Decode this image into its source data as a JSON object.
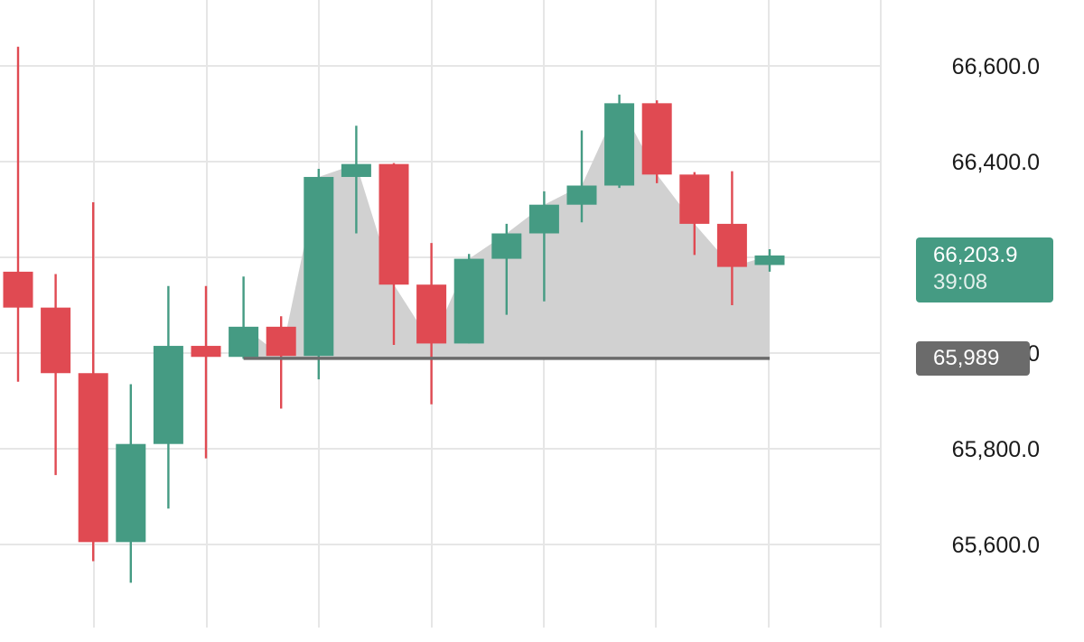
{
  "chart_data": {
    "type": "candlestick",
    "title": "",
    "ylim": [
      65440,
      66730
    ],
    "y_ticks": [
      66600,
      66400,
      66200,
      66000,
      65800,
      65600
    ],
    "y_tick_labels": [
      "66,600.0",
      "66,400.0",
      "66,200.0",
      "66,000.0",
      "65,800.0",
      "65,600.0"
    ],
    "grid": true,
    "candles": [
      {
        "open": 66170,
        "high": 66640,
        "low": 65940,
        "close": 66095
      },
      {
        "open": 66095,
        "high": 66165,
        "low": 65745,
        "close": 65958
      },
      {
        "open": 65958,
        "high": 66315,
        "low": 65565,
        "close": 65605
      },
      {
        "open": 65605,
        "high": 65935,
        "low": 65520,
        "close": 65810
      },
      {
        "open": 65810,
        "high": 66140,
        "low": 65675,
        "close": 66015
      },
      {
        "open": 66015,
        "high": 66140,
        "low": 65780,
        "close": 65992
      },
      {
        "open": 65992,
        "high": 66160,
        "low": 65988,
        "close": 66055
      },
      {
        "open": 66055,
        "high": 66077,
        "low": 65884,
        "close": 65994
      },
      {
        "open": 65994,
        "high": 66385,
        "low": 65945,
        "close": 66368
      },
      {
        "open": 66368,
        "high": 66475,
        "low": 66250,
        "close": 66395
      },
      {
        "open": 66395,
        "high": 66397,
        "low": 66017,
        "close": 66143
      },
      {
        "open": 66143,
        "high": 66230,
        "low": 65893,
        "close": 66020
      },
      {
        "open": 66020,
        "high": 66207,
        "low": 66020,
        "close": 66197
      },
      {
        "open": 66197,
        "high": 66270,
        "low": 66080,
        "close": 66250
      },
      {
        "open": 66250,
        "high": 66338,
        "low": 66108,
        "close": 66310
      },
      {
        "open": 66310,
        "high": 66465,
        "low": 66273,
        "close": 66350
      },
      {
        "open": 66350,
        "high": 66540,
        "low": 66345,
        "close": 66522
      },
      {
        "open": 66522,
        "high": 66528,
        "low": 66355,
        "close": 66373
      },
      {
        "open": 66373,
        "high": 66378,
        "low": 66205,
        "close": 66270
      },
      {
        "open": 66270,
        "high": 66380,
        "low": 66100,
        "close": 66180
      },
      {
        "open": 66184,
        "high": 66217,
        "low": 66170,
        "close": 66203.9
      }
    ],
    "last_price": {
      "value": 66203.9,
      "label": "66,203.9",
      "countdown": "39:08"
    },
    "reference_line": {
      "value": 65989,
      "label": "65,989"
    },
    "colors": {
      "up": "#459b83",
      "down": "#e04a52",
      "grid": "#e6e6e6",
      "area_fill": "#d1d1d1",
      "reference_line": "#6b6b6b",
      "ref_tag_bg": "#6b6b6b",
      "last_tag_bg": "#459b83"
    }
  }
}
